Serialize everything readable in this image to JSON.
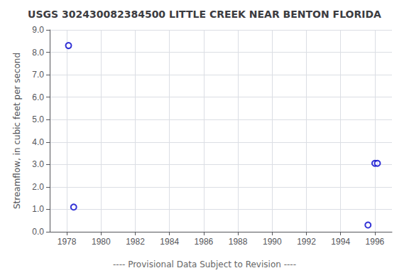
{
  "chart_data": {
    "type": "scatter",
    "title": "USGS 302430082384500 LITTLE CREEK NEAR BENTON FLORIDA",
    "ylabel": "Streamflow, in cubic feet per second",
    "annotations": [
      "---- Provisional Data Subject to Revision ----"
    ],
    "x": [
      1978.1,
      1978.4,
      1995.6,
      1996.0,
      1996.15
    ],
    "values": [
      8.3,
      1.1,
      0.3,
      3.05,
      3.05
    ],
    "color": "#0000cc",
    "marker": "open circle",
    "xlim": [
      1977.0,
      1997.0
    ],
    "ylim": [
      0.0,
      9.0
    ],
    "xticks": [
      1978,
      1980,
      1982,
      1984,
      1986,
      1988,
      1990,
      1992,
      1994,
      1996
    ],
    "yticks": [
      {
        "value": 0.0,
        "label": "0.0"
      },
      {
        "value": 1.0,
        "label": "1.0"
      },
      {
        "value": 2.0,
        "label": "2.0"
      },
      {
        "value": 3.0,
        "label": "3.0"
      },
      {
        "value": 4.0,
        "label": "4.0"
      },
      {
        "value": 5.0,
        "label": "5.0"
      },
      {
        "value": 6.0,
        "label": "6.0"
      },
      {
        "value": 7.0,
        "label": "7.0"
      },
      {
        "value": 8.0,
        "label": "8.0"
      },
      {
        "value": 9.0,
        "label": "9.0"
      }
    ],
    "grid": true
  }
}
